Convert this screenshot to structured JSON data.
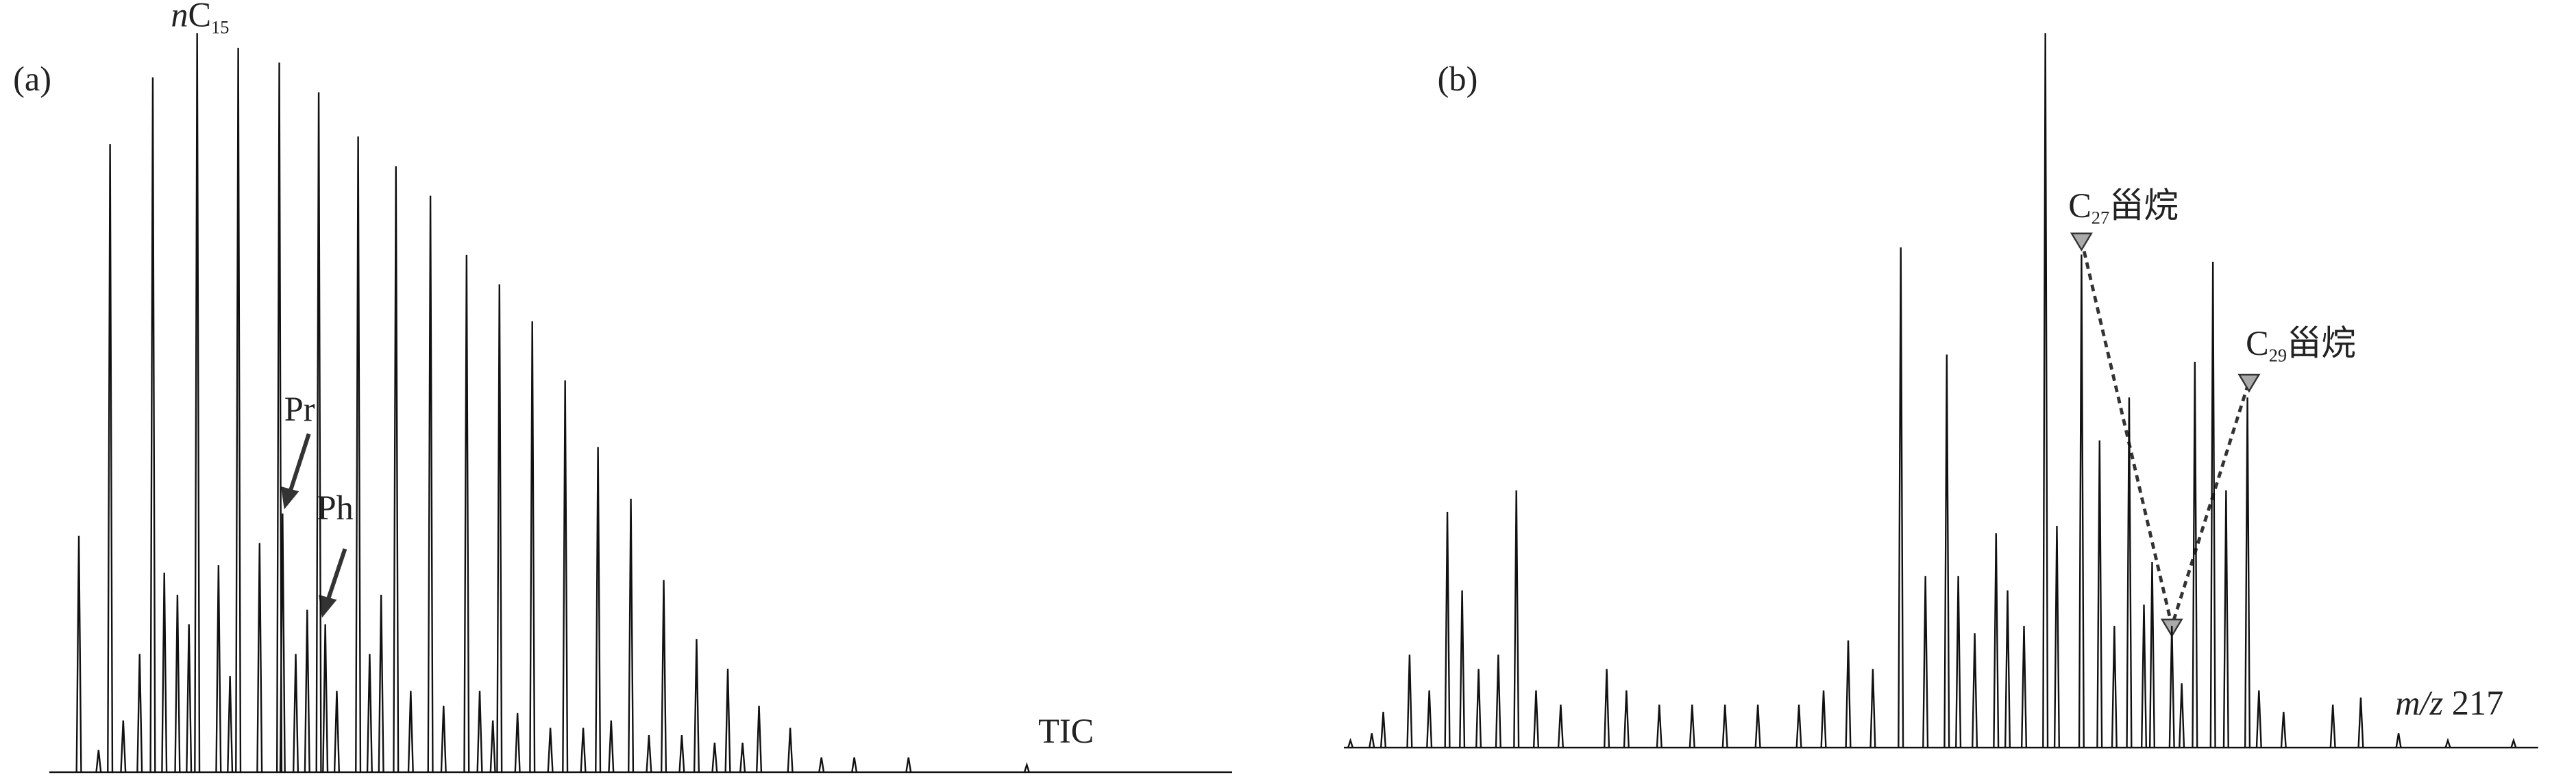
{
  "chart_data": [
    {
      "type": "spikes",
      "panel": "(a)",
      "trace_label": "TIC",
      "color": "#111111",
      "xlim": [
        30,
        750
      ],
      "ylim": [
        0,
        100
      ],
      "x": [
        48,
        60,
        67,
        75,
        85,
        93,
        100,
        108,
        115,
        120,
        133,
        140,
        145,
        158,
        170,
        172,
        180,
        187,
        194,
        198,
        205,
        218,
        225,
        232,
        241,
        250,
        262,
        270,
        284,
        292,
        300,
        304,
        315,
        324,
        335,
        344,
        355,
        364,
        372,
        384,
        395,
        404,
        415,
        424,
        435,
        443,
        452,
        462,
        481,
        500,
        520,
        553,
        625
      ],
      "values": [
        32,
        3,
        85,
        7,
        16,
        94,
        27,
        24,
        20,
        100,
        28,
        13,
        98,
        31,
        96,
        35,
        16,
        22,
        92,
        20,
        11,
        86,
        16,
        24,
        82,
        11,
        78,
        9,
        70,
        11,
        7,
        66,
        8,
        61,
        6,
        53,
        6,
        44,
        7,
        37,
        5,
        26,
        5,
        18,
        4,
        14,
        4,
        9,
        6,
        2,
        2,
        2,
        1
      ],
      "annotations": [
        {
          "text": [
            "n",
            "C",
            "15"
          ]
        },
        {
          "text": [
            "Pr"
          ]
        },
        {
          "text": [
            "Ph"
          ]
        }
      ]
    },
    {
      "type": "spikes",
      "panel": "(b)",
      "trace_label": [
        "m/z",
        " 217"
      ],
      "color": "#111111",
      "xlim": [
        818,
        1545
      ],
      "ylim": [
        0,
        100
      ],
      "x": [
        822,
        835,
        842,
        858,
        870,
        881,
        890,
        900,
        912,
        923,
        935,
        950,
        978,
        990,
        1010,
        1030,
        1050,
        1070,
        1095,
        1110,
        1125,
        1140,
        1157,
        1172,
        1185,
        1192,
        1202,
        1215,
        1222,
        1232,
        1245,
        1252,
        1267,
        1278,
        1287,
        1296,
        1305,
        1310,
        1322,
        1328,
        1336,
        1347,
        1355,
        1368,
        1375,
        1390,
        1420,
        1437,
        1460,
        1490,
        1530
      ],
      "values": [
        1,
        2,
        5,
        13,
        8,
        33,
        22,
        11,
        13,
        36,
        8,
        6,
        11,
        8,
        6,
        6,
        6,
        6,
        6,
        8,
        15,
        11,
        70,
        24,
        55,
        24,
        16,
        30,
        22,
        17,
        100,
        31,
        69,
        43,
        17,
        49,
        20,
        26,
        17,
        9,
        54,
        68,
        36,
        49,
        8,
        5,
        6,
        7,
        2,
        1,
        1
      ],
      "annotations": [
        {
          "text": [
            "C",
            "27",
            "甾烷"
          ]
        },
        {
          "text": [
            "C",
            "29",
            "甾烷"
          ]
        }
      ]
    }
  ]
}
